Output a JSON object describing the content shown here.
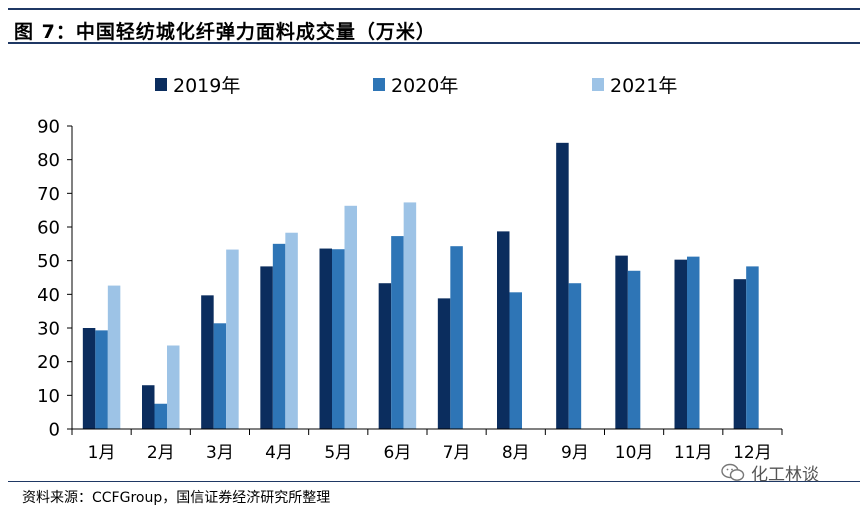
{
  "title": "图 7：中国轻纺城化纤弹力面料成交量（万米）",
  "source": "资料来源：CCFGroup，国信证券经济研究所整理",
  "watermark": "化工林谈",
  "colors": {
    "s2019": "#0b2d5e",
    "s2020": "#2e75b6",
    "s2021": "#9dc3e6",
    "frame": "#1f3864"
  },
  "chart_data": {
    "type": "bar",
    "title": "",
    "xlabel": "",
    "ylabel": "",
    "ylim": [
      0,
      90
    ],
    "yticks": [
      0,
      10,
      20,
      30,
      40,
      50,
      60,
      70,
      80,
      90
    ],
    "grid": false,
    "legend_position": "top",
    "categories": [
      "1月",
      "2月",
      "3月",
      "4月",
      "5月",
      "6月",
      "7月",
      "8月",
      "9月",
      "10月",
      "11月",
      "12月"
    ],
    "series": [
      {
        "name": "2019年",
        "color": "#0b2d5e",
        "values": [
          30,
          13,
          39.7,
          48.3,
          53.6,
          43.3,
          38.8,
          58.7,
          85,
          51.5,
          50.3,
          44.5
        ]
      },
      {
        "name": "2020年",
        "color": "#2e75b6",
        "values": [
          29.3,
          7.5,
          31.4,
          55,
          53.4,
          57.3,
          54.3,
          40.6,
          43.3,
          47,
          51.2,
          48.3
        ]
      },
      {
        "name": "2021年",
        "color": "#9dc3e6",
        "values": [
          42.6,
          24.8,
          53.3,
          58.3,
          66.3,
          67.3,
          null,
          null,
          null,
          null,
          null,
          null
        ]
      }
    ]
  }
}
